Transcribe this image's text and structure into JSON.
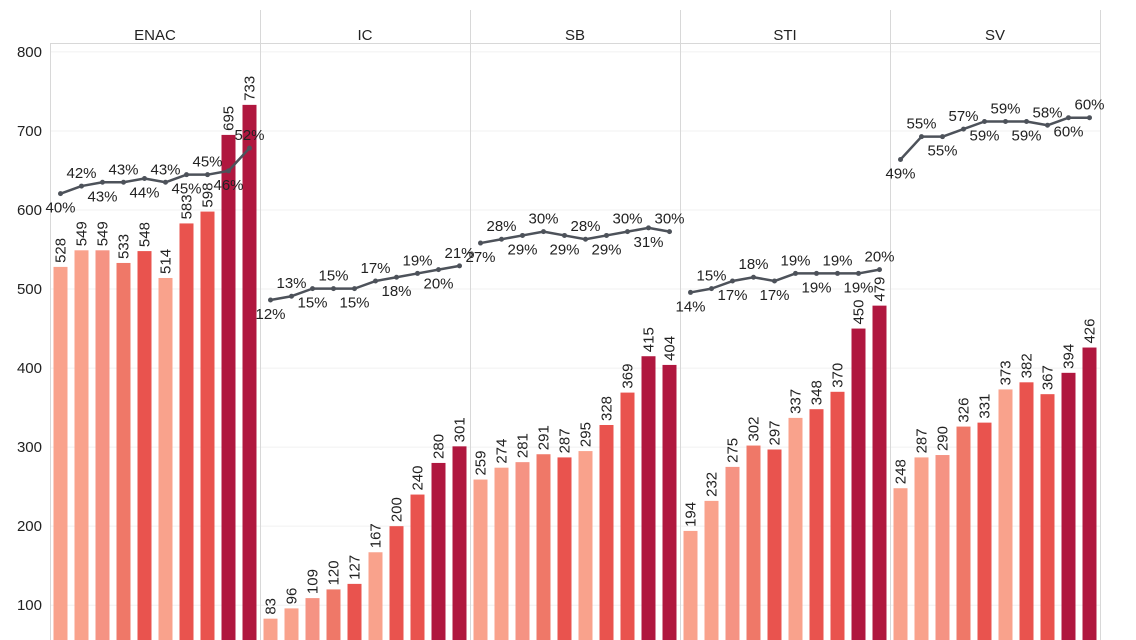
{
  "chart_data": {
    "type": "combo",
    "ylim": [
      56,
      810
    ],
    "yticks": [
      100,
      200,
      300,
      400,
      500,
      600,
      700,
      800
    ],
    "y2lim": [
      -77.5,
      79.4
    ],
    "grid": true,
    "bar_colors": [
      "#f9a28c",
      "#f9a28c",
      "#f59383",
      "#ef7868",
      "#e9534e",
      "#f9a28c",
      "#e9534e",
      "#e9534e",
      "#b0173f",
      "#b0173f"
    ],
    "line_color": "#4d525a",
    "panels": [
      {
        "name": "ENAC",
        "values": [
          528,
          549,
          549,
          533,
          548,
          514,
          583,
          598,
          695,
          733
        ],
        "rates": [
          40,
          42,
          43,
          43,
          44,
          43,
          45,
          45,
          46,
          52
        ],
        "rate_labels": [
          "40%",
          "42%",
          "43%",
          "43%",
          "44%",
          "43%",
          "45%",
          "45%",
          "46%",
          "52%"
        ]
      },
      {
        "name": "IC",
        "values": [
          83,
          96,
          109,
          120,
          127,
          167,
          200,
          240,
          280,
          301
        ],
        "rates": [
          12,
          13,
          15,
          15,
          15,
          17,
          18,
          19,
          20,
          21
        ],
        "rate_labels": [
          "12%",
          "13%",
          "15%",
          "15%",
          "15%",
          "17%",
          "18%",
          "19%",
          "20%",
          "21%"
        ]
      },
      {
        "name": "SB",
        "values": [
          259,
          274,
          281,
          291,
          287,
          295,
          328,
          369,
          415,
          404
        ],
        "rates": [
          27,
          28,
          29,
          30,
          29,
          28,
          29,
          30,
          31,
          30
        ],
        "rate_labels": [
          "27%",
          "28%",
          "29%",
          "30%",
          "29%",
          "28%",
          "29%",
          "30%",
          "31%",
          "30%"
        ]
      },
      {
        "name": "STI",
        "values": [
          194,
          232,
          275,
          302,
          297,
          337,
          348,
          370,
          450,
          479
        ],
        "rates": [
          14,
          15,
          17,
          18,
          17,
          19,
          19,
          19,
          19,
          20
        ],
        "rate_labels": [
          "14%",
          "15%",
          "17%",
          "18%",
          "17%",
          "19%",
          "19%",
          "19%",
          "19%",
          "20%"
        ]
      },
      {
        "name": "SV",
        "values": [
          248,
          287,
          290,
          326,
          331,
          373,
          382,
          367,
          394,
          426
        ],
        "rates": [
          49,
          55,
          55,
          57,
          59,
          59,
          59,
          58,
          60,
          60
        ],
        "rate_labels": [
          "49%",
          "55%",
          "55%",
          "57%",
          "59%",
          "59%",
          "59%",
          "58%",
          "60%",
          "60%"
        ]
      }
    ]
  }
}
